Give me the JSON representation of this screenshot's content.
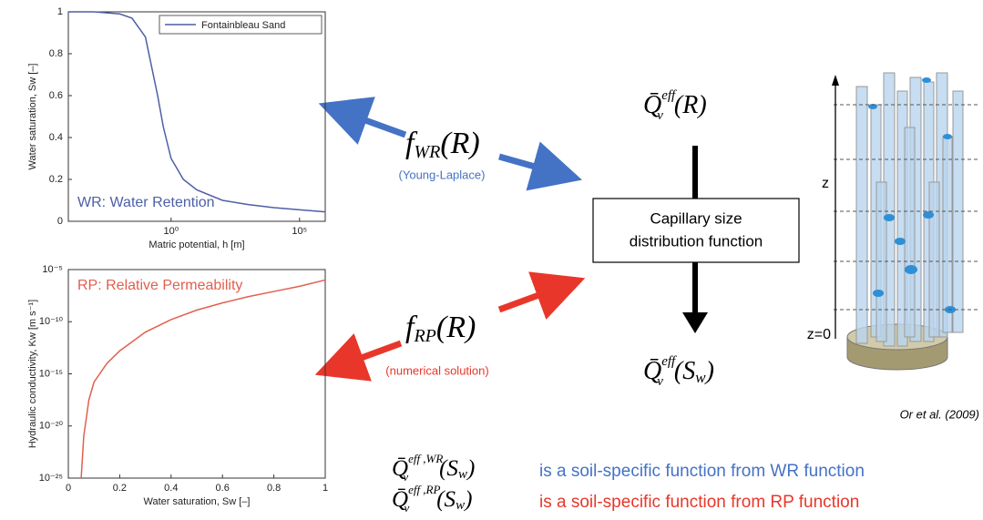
{
  "chart_data": [
    {
      "type": "line",
      "xlabel": "Matric potential, h [m]",
      "ylabel": "Water saturation, Sw [–]",
      "xscale": "log",
      "xlim": [
        0.0001,
        1000000
      ],
      "xticks": [
        {
          "value": 1,
          "label": "10⁰"
        },
        {
          "value": 100000,
          "label": "10⁵"
        }
      ],
      "ylim": [
        0,
        1
      ],
      "yticks": [
        0,
        0.2,
        0.4,
        0.6,
        0.8,
        1
      ],
      "x": [
        0.0001,
        0.001,
        0.01,
        0.03,
        0.1,
        0.3,
        0.5,
        1,
        3,
        10,
        100,
        1000,
        10000,
        100000,
        1000000
      ],
      "series": [
        {
          "name": "Fontainbleau Sand",
          "color": "#4d5fa6",
          "values": [
            1,
            1,
            0.99,
            0.97,
            0.88,
            0.6,
            0.45,
            0.3,
            0.2,
            0.15,
            0.1,
            0.08,
            0.065,
            0.055,
            0.045
          ]
        }
      ],
      "legend": "upper right",
      "annotation": "WR: Water Retention"
    },
    {
      "type": "line",
      "xlabel": "Water saturation, Sw [–]",
      "ylabel": "Hydraulic conductivity, Kw [m s⁻¹]",
      "yscale": "log",
      "xlim": [
        0,
        1
      ],
      "xticks": [
        0,
        0.2,
        0.4,
        0.6,
        0.8,
        1
      ],
      "ylim": [
        1e-25,
        1e-05
      ],
      "yticks": [
        {
          "value": 1e-25,
          "label": "10⁻²⁵"
        },
        {
          "value": 1e-20,
          "label": "10⁻²⁰"
        },
        {
          "value": 1e-15,
          "label": "10⁻¹⁵"
        },
        {
          "value": 1e-10,
          "label": "10⁻¹⁰"
        },
        {
          "value": 1e-05,
          "label": "10⁻⁵"
        }
      ],
      "x": [
        0.05,
        0.06,
        0.08,
        0.1,
        0.15,
        0.2,
        0.3,
        0.4,
        0.5,
        0.6,
        0.7,
        0.8,
        0.9,
        1
      ],
      "series": [
        {
          "color": "#e0604e",
          "values": [
            1e-25,
            1e-21,
            3.2e-18,
            1.6e-16,
            1e-14,
            1.6e-13,
            1e-11,
            1.6e-10,
            1.3e-09,
            6.3e-09,
            2.5e-08,
            7.9e-08,
            2.5e-07,
            1e-06
          ]
        }
      ],
      "annotation": "RP: Relative Permeability"
    }
  ],
  "diagram": {
    "f_wr": {
      "f": "f",
      "sub": "WR",
      "arg": "(R)",
      "note": "(Young-Laplace)"
    },
    "f_rp": {
      "f": "f",
      "sub": "RP",
      "arg": "(R)",
      "note": "(numerical solution)"
    },
    "q_r": {
      "q": "Q̄",
      "sup": "eff",
      "sub": "v",
      "arg": "(R)"
    },
    "box": [
      "Capillary size",
      "distribution function"
    ],
    "q_sw": {
      "q": "Q̄",
      "sup": "eff",
      "sub": "v",
      "arg": "(S",
      "arg_sub": "w",
      "close": ")"
    },
    "figure": {
      "z": "z",
      "z0": "z=0",
      "citation": "Or et al. (2009)"
    },
    "statements": [
      {
        "q": "Q̄",
        "sup": "eff ,WR",
        "sub": "v",
        "arg": "(S",
        "arg_sub": "w",
        "close": ")",
        "text": "is a soil-specific function from WR function"
      },
      {
        "q": "Q̄",
        "sup": "eff ,RP",
        "sub": "v",
        "arg": "(S",
        "arg_sub": "w",
        "close": ")",
        "text": "is a soil-specific function from RP function"
      }
    ]
  }
}
